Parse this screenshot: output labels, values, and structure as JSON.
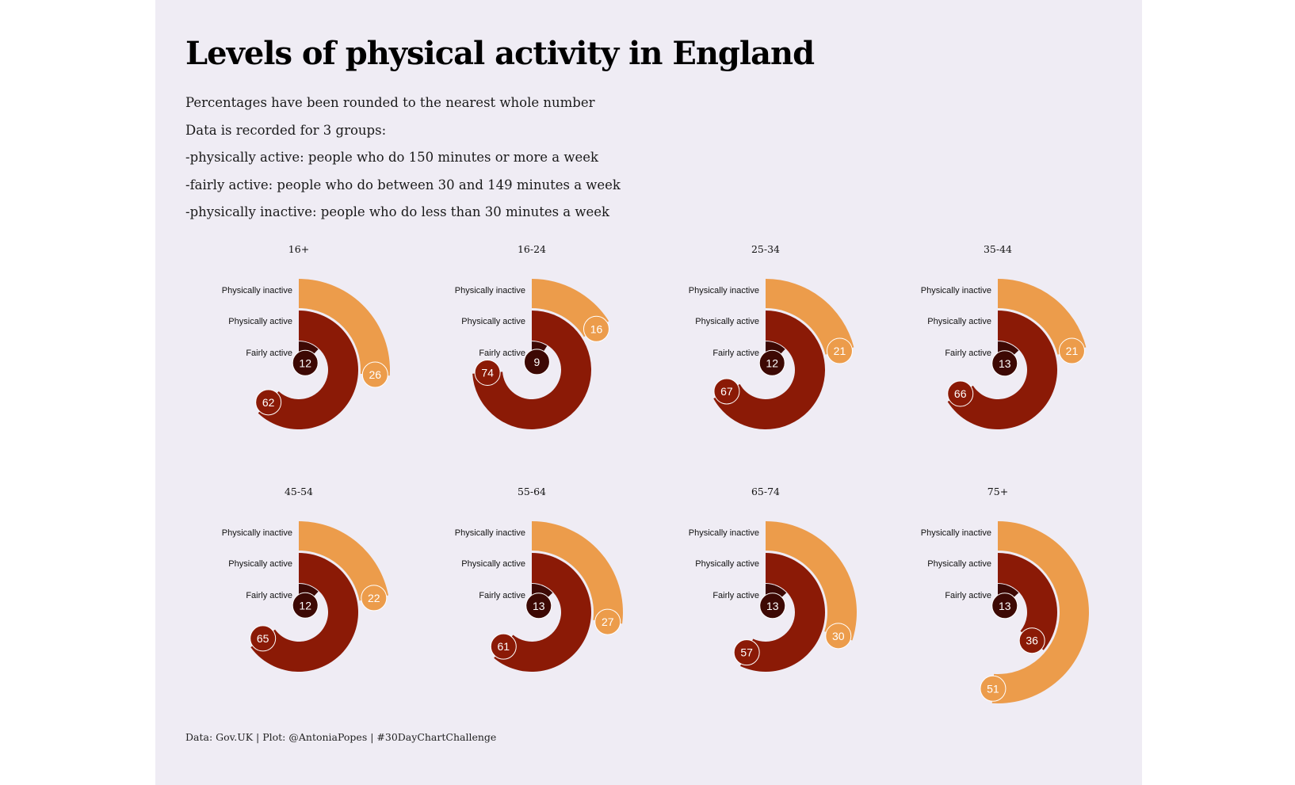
{
  "title": "Levels of physical activity in England",
  "subtitle_lines": [
    "Percentages have been rounded to the nearest whole number",
    "Data is recorded for 3 groups:",
    "-physically active: people who do 150 minutes or more a week",
    "-fairly active: people who do between 30 and 149 minutes a week",
    "-physically inactive: people who do less than 30 minutes a week"
  ],
  "caption": "Data: Gov.UK | Plot: @AntoniaPopes | #30DayChartChallenge",
  "colors": {
    "background": "#efecf4",
    "physically_inactive": "#ec9c4b",
    "physically_active": "#8b1a06",
    "fairly_active": "#3d0904"
  },
  "chart_data": {
    "type": "radial-bar",
    "ring_order_outer_to_inner": [
      "Physically inactive",
      "Physically active",
      "Fairly active"
    ],
    "value_max": 100,
    "unit": "%",
    "facets": [
      {
        "group": "16+",
        "Physically inactive": 26,
        "Physically active": 62,
        "Fairly active": 12
      },
      {
        "group": "16-24",
        "Physically inactive": 16,
        "Physically active": 74,
        "Fairly active": 9
      },
      {
        "group": "25-34",
        "Physically inactive": 21,
        "Physically active": 67,
        "Fairly active": 12
      },
      {
        "group": "35-44",
        "Physically inactive": 21,
        "Physically active": 66,
        "Fairly active": 13
      },
      {
        "group": "45-54",
        "Physically inactive": 22,
        "Physically active": 65,
        "Fairly active": 12
      },
      {
        "group": "55-64",
        "Physically inactive": 27,
        "Physically active": 61,
        "Fairly active": 13
      },
      {
        "group": "65-74",
        "Physically inactive": 30,
        "Physically active": 57,
        "Fairly active": 13
      },
      {
        "group": "75+",
        "Physically inactive": 51,
        "Physically active": 36,
        "Fairly active": 13
      }
    ]
  }
}
